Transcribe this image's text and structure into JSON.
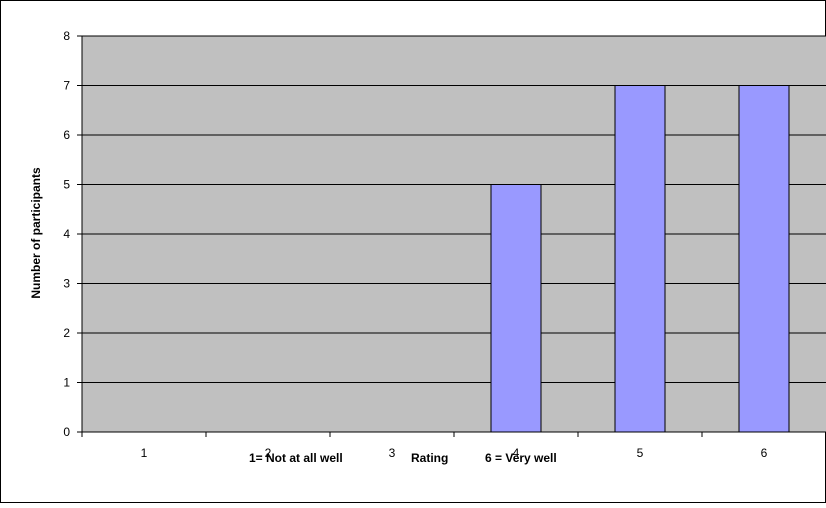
{
  "chart_data": {
    "type": "bar",
    "categories": [
      "1",
      "2",
      "3",
      "4",
      "5",
      "6"
    ],
    "values": [
      0,
      0,
      0,
      5,
      7,
      7
    ],
    "ylabel": "Number of participants",
    "xlabel_parts": {
      "left": "1= Not at all well",
      "center": "Rating",
      "right": "6 = Very well"
    },
    "ylim": [
      0,
      8
    ],
    "yticks": [
      "0",
      "1",
      "2",
      "3",
      "4",
      "5",
      "6",
      "7",
      "8"
    ],
    "grid": true,
    "legend": "none",
    "colors": {
      "plot_background": "#c0c0c0",
      "bar_fill": "#9999ff",
      "bar_stroke": "#000000",
      "gridline": "#000000",
      "frame": "#000000"
    }
  }
}
